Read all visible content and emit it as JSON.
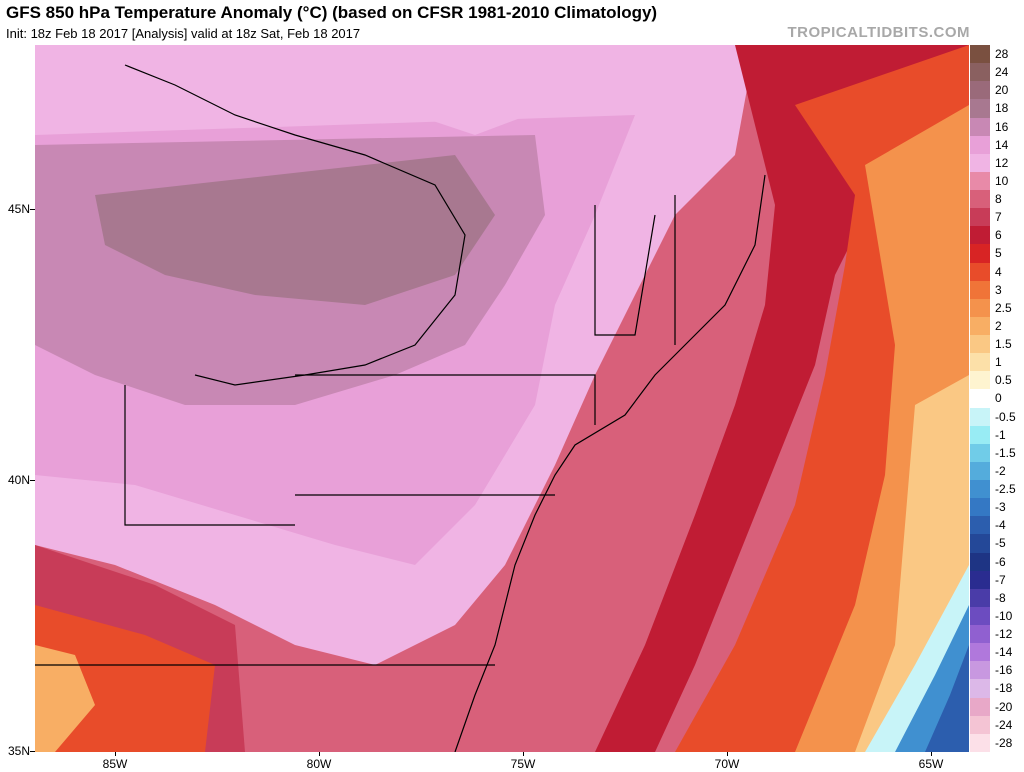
{
  "header": {
    "title": "GFS 850 hPa Temperature Anomaly (°C) (based on CFSR 1981-2010 Climatology)",
    "subtitle": "Init: 18z Feb 18 2017   [Analysis]   valid at 18z Sat, Feb 18 2017",
    "brand": "TROPICALTIDBITS.COM"
  },
  "axes": {
    "lat_labels": [
      "45N",
      "40N",
      "35N"
    ],
    "lon_labels": [
      "85W",
      "80W",
      "75W",
      "70W",
      "65W"
    ]
  },
  "colorbar": {
    "levels": [
      {
        "label": "28",
        "color": "#7a5040"
      },
      {
        "label": "24",
        "color": "#8a6060"
      },
      {
        "label": "20",
        "color": "#9a6a7a"
      },
      {
        "label": "18",
        "color": "#a87890"
      },
      {
        "label": "16",
        "color": "#c888b4"
      },
      {
        "label": "14",
        "color": "#e8a0d8"
      },
      {
        "label": "12",
        "color": "#f0b4e4"
      },
      {
        "label": "10",
        "color": "#e88aa8"
      },
      {
        "label": "8",
        "color": "#d8607a"
      },
      {
        "label": "7",
        "color": "#c83c58"
      },
      {
        "label": "6",
        "color": "#c01c34"
      },
      {
        "label": "5",
        "color": "#d82424"
      },
      {
        "label": "4",
        "color": "#e84c2a"
      },
      {
        "label": "3",
        "color": "#f07438"
      },
      {
        "label": "2.5",
        "color": "#f4924c"
      },
      {
        "label": "2",
        "color": "#f8ae64"
      },
      {
        "label": "1.5",
        "color": "#fac884"
      },
      {
        "label": "1",
        "color": "#fce0a8"
      },
      {
        "label": "0.5",
        "color": "#fef4d0"
      },
      {
        "label": "0",
        "color": "#ffffff"
      },
      {
        "label": "-0.5",
        "color": "#c8f4f8"
      },
      {
        "label": "-1",
        "color": "#98ecf4"
      },
      {
        "label": "-1.5",
        "color": "#70cce8"
      },
      {
        "label": "-2",
        "color": "#54acdc"
      },
      {
        "label": "-2.5",
        "color": "#4090d0"
      },
      {
        "label": "-3",
        "color": "#3478c4"
      },
      {
        "label": "-4",
        "color": "#2c5eae"
      },
      {
        "label": "-5",
        "color": "#244898"
      },
      {
        "label": "-6",
        "color": "#1e3484"
      },
      {
        "label": "-7",
        "color": "#2a2c90"
      },
      {
        "label": "-8",
        "color": "#4a3ca8"
      },
      {
        "label": "-10",
        "color": "#6c4cc0"
      },
      {
        "label": "-12",
        "color": "#9060d0"
      },
      {
        "label": "-14",
        "color": "#b078dc"
      },
      {
        "label": "-16",
        "color": "#c898e0"
      },
      {
        "label": "-18",
        "color": "#dcb8e8"
      },
      {
        "label": "-20",
        "color": "#e8a8c8"
      },
      {
        "label": "-24",
        "color": "#f4c4d4"
      },
      {
        "label": "-28",
        "color": "#fce0e8"
      }
    ]
  },
  "map_colors": {
    "ocean_base": "#c01c34",
    "cold_core": "#2c5eae"
  }
}
